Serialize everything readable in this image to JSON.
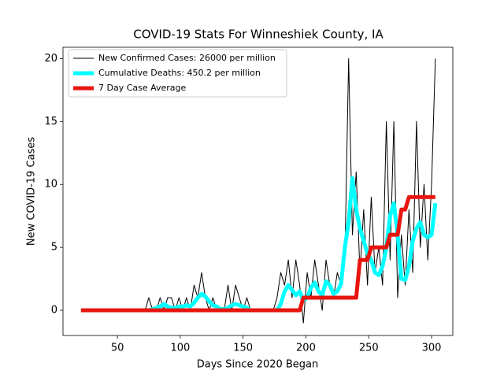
{
  "chart_data": {
    "type": "line",
    "title": "COVID-19 Stats For Winneshiek County, IA",
    "xlabel": "Days Since 2020 Began",
    "ylabel": "New COVID-19 Cases",
    "xlim": [
      6.7,
      316.9
    ],
    "ylim": [
      -2.0,
      20.9
    ],
    "xticks": [
      50,
      100,
      150,
      200,
      250,
      300
    ],
    "yticks": [
      0,
      5,
      10,
      15,
      20
    ],
    "legend": "upper left",
    "x": [
      21,
      24,
      27,
      30,
      33,
      36,
      39,
      42,
      45,
      48,
      51,
      54,
      57,
      60,
      63,
      66,
      69,
      72,
      75,
      78,
      81,
      84,
      87,
      90,
      93,
      96,
      99,
      102,
      105,
      108,
      111,
      114,
      117,
      120,
      123,
      126,
      129,
      132,
      135,
      138,
      141,
      144,
      147,
      150,
      153,
      156,
      159,
      162,
      165,
      168,
      171,
      174,
      177,
      180,
      183,
      186,
      189,
      192,
      195,
      198,
      201,
      204,
      207,
      210,
      213,
      216,
      219,
      222,
      225,
      228,
      231,
      234,
      237,
      240,
      243,
      246,
      249,
      252,
      255,
      258,
      261,
      264,
      267,
      270,
      273,
      276,
      279,
      282,
      285,
      288,
      291,
      294,
      297,
      300,
      303
    ],
    "series": [
      {
        "name": "New Confirmed Cases: 26000 per million",
        "color": "#000000",
        "linewidth": 1,
        "values": [
          0,
          0,
          0,
          0,
          0,
          0,
          0,
          0,
          0,
          0,
          0,
          0,
          0,
          0,
          0,
          0,
          0,
          0,
          1,
          0,
          0,
          1,
          0,
          1,
          1,
          0,
          1,
          0,
          1,
          0,
          2,
          1,
          3,
          1,
          0,
          1,
          0,
          0,
          0,
          2,
          0,
          2,
          1,
          0,
          1,
          0,
          0,
          0,
          0,
          0,
          0,
          0,
          1,
          3,
          2,
          4,
          1,
          4,
          2,
          -1,
          3,
          1,
          4,
          2,
          0,
          4,
          2,
          1,
          3,
          2,
          4,
          20,
          6,
          11,
          3,
          8,
          2,
          9,
          3,
          5,
          2,
          15,
          4,
          15,
          1,
          6,
          2,
          8,
          3,
          15,
          5,
          10,
          4,
          10,
          20
        ]
      },
      {
        "name": "Cumulative Deaths: 450.2 per million",
        "color": "#00ffff",
        "linewidth": 5,
        "values": [
          null,
          null,
          null,
          null,
          null,
          null,
          null,
          null,
          null,
          null,
          null,
          null,
          null,
          null,
          null,
          null,
          null,
          null,
          0,
          0.1,
          0.2,
          0.3,
          0.5,
          0.3,
          0.2,
          0.2,
          0.3,
          0.3,
          0.4,
          0.3,
          0.6,
          1.0,
          1.3,
          1.1,
          0.7,
          0.4,
          0.3,
          0.1,
          0.1,
          0.2,
          0.4,
          0.5,
          0.4,
          0.3,
          0.2,
          0,
          0,
          0,
          0,
          0,
          0,
          0,
          0,
          0.5,
          1.5,
          2.0,
          1.6,
          1.2,
          1.5,
          0.8,
          1.0,
          1.8,
          2.2,
          1.5,
          1.2,
          2.3,
          2.0,
          1.3,
          1.5,
          2.1,
          5,
          7,
          10.5,
          8,
          6.5,
          5.5,
          4.5,
          4,
          3,
          2.8,
          3.5,
          5,
          7.5,
          8.5,
          6,
          2.5,
          2.4,
          3.5,
          5.5,
          6.5,
          7,
          6,
          5.8,
          6,
          8.5
        ]
      },
      {
        "name": "7 Day Case Average",
        "color": "#e8150f",
        "linewidth": 5,
        "values": [
          0,
          0,
          0,
          0,
          0,
          0,
          0,
          0,
          0,
          0,
          0,
          0,
          0,
          0,
          0,
          0,
          0,
          0,
          0,
          0,
          0,
          0,
          0,
          0,
          0,
          0,
          0,
          0,
          0,
          0,
          0,
          0,
          0,
          0,
          0,
          0,
          0,
          0,
          0,
          0,
          0,
          0,
          0,
          0,
          0,
          0,
          0,
          0,
          0,
          0,
          0,
          0,
          0,
          0,
          0,
          0,
          0,
          0,
          0,
          1,
          1,
          1,
          1,
          1,
          1,
          1,
          1,
          1,
          1,
          1,
          1,
          1,
          1,
          1,
          4,
          4,
          4,
          5,
          5,
          5,
          5,
          5,
          6,
          6,
          6,
          8,
          8,
          9,
          9,
          9,
          9,
          9,
          9,
          9,
          9
        ]
      }
    ]
  }
}
